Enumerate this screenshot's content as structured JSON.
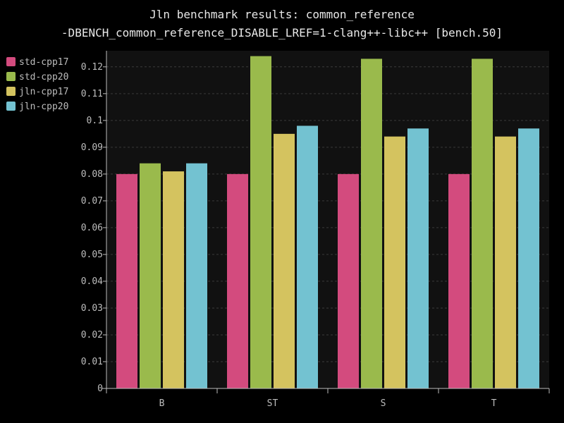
{
  "chart_data": {
    "type": "bar",
    "title": "Jln benchmark results: common_reference",
    "subtitle": "-DBENCH_common_reference_DISABLE_LREF=1-clang++-libc++ [bench.50]",
    "xlabel": "",
    "ylabel": "",
    "categories": [
      "B",
      "ST",
      "S",
      "T"
    ],
    "series": [
      {
        "name": "std-cpp17",
        "color": "#d34b7e",
        "values": [
          0.08,
          0.08,
          0.08,
          0.08
        ]
      },
      {
        "name": "std-cpp20",
        "color": "#9aba4c",
        "values": [
          0.084,
          0.124,
          0.123,
          0.123
        ]
      },
      {
        "name": "jln-cpp17",
        "color": "#d4c35f",
        "values": [
          0.081,
          0.095,
          0.094,
          0.094
        ]
      },
      {
        "name": "jln-cpp20",
        "color": "#73c2d1",
        "values": [
          0.084,
          0.098,
          0.097,
          0.097
        ]
      }
    ],
    "ylim": [
      0,
      0.126
    ],
    "yticks": [
      "0",
      "0.01",
      "0.02",
      "0.03",
      "0.04",
      "0.05",
      "0.06",
      "0.07",
      "0.08",
      "0.09",
      "0.1",
      "0.11",
      "0.12"
    ],
    "grid": true,
    "legend_position": "top-left"
  }
}
